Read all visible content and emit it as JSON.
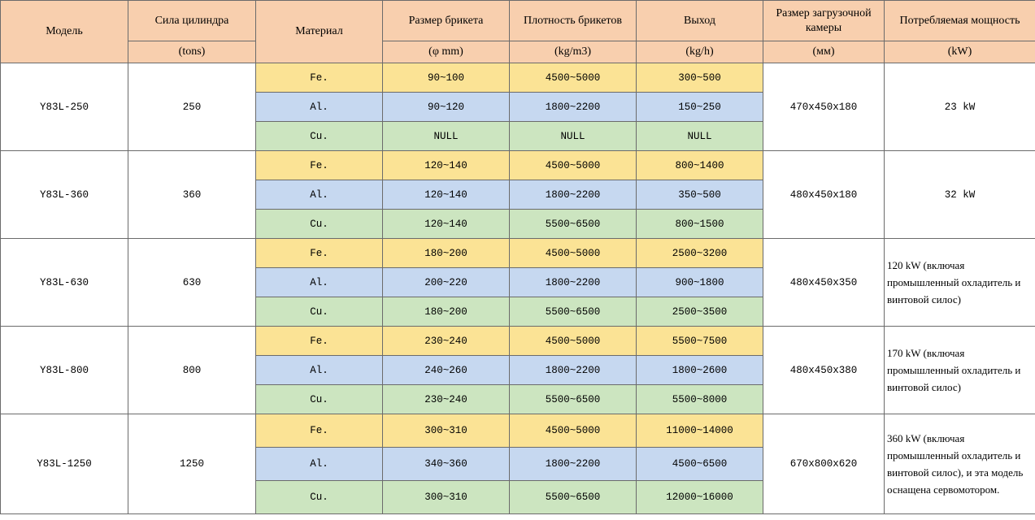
{
  "header": {
    "model": "Модель",
    "force": "Сила цилиндра",
    "force_unit": "(tons)",
    "material": "Материал",
    "size": "Размер брикета",
    "size_unit": "(φ mm)",
    "density": "Плотность брикетов",
    "density_unit": "(kg/m3)",
    "output": "Выход",
    "output_unit": "(kg/h)",
    "chamber": "Размер загрузочной камеры",
    "chamber_unit": "(мм)",
    "power": "Потребляемая мощность",
    "power_unit": "(kW)"
  },
  "rows": [
    {
      "model": "Y83L-250",
      "force": "250",
      "chamber": "470x450x180",
      "power": "23  kW",
      "materials": [
        {
          "material": "Fe.",
          "size": "90~100",
          "density": "4500~5000",
          "output": "300~500"
        },
        {
          "material": "Al.",
          "size": "90~120",
          "density": "1800~2200",
          "output": "150~250"
        },
        {
          "material": "Cu.",
          "size": "NULL",
          "density": "NULL",
          "output": "NULL"
        }
      ]
    },
    {
      "model": "Y83L-360",
      "force": "360",
      "chamber": "480x450x180",
      "power": "32  kW",
      "materials": [
        {
          "material": "Fe.",
          "size": "120~140",
          "density": "4500~5000",
          "output": "800~1400"
        },
        {
          "material": "Al.",
          "size": "120~140",
          "density": "1800~2200",
          "output": "350~500"
        },
        {
          "material": "Cu.",
          "size": "120~140",
          "density": "5500~6500",
          "output": "800~1500"
        }
      ]
    },
    {
      "model": "Y83L-630",
      "force": "630",
      "chamber": "480x450x350",
      "power": "120 kW (включая промышленный охладитель и винтовой силос)",
      "materials": [
        {
          "material": "Fe.",
          "size": "180~200",
          "density": "4500~5000",
          "output": "2500~3200"
        },
        {
          "material": "Al.",
          "size": "200~220",
          "density": "1800~2200",
          "output": "900~1800"
        },
        {
          "material": "Cu.",
          "size": "180~200",
          "density": "5500~6500",
          "output": "2500~3500"
        }
      ]
    },
    {
      "model": "Y83L-800",
      "force": "800",
      "chamber": "480x450x380",
      "power": "170 kW (включая промышленный охладитель и винтовой силос)",
      "materials": [
        {
          "material": "Fe.",
          "size": "230~240",
          "density": "4500~5000",
          "output": "5500~7500"
        },
        {
          "material": "Al.",
          "size": "240~260",
          "density": "1800~2200",
          "output": "1800~2600"
        },
        {
          "material": "Cu.",
          "size": "230~240",
          "density": "5500~6500",
          "output": "5500~8000"
        }
      ]
    },
    {
      "model": "Y83L-1250",
      "force": "1250",
      "chamber": "670x800x620",
      "power": "360 kW (включая промышленный охладитель и винтовой силос), и эта модель оснащена сервомотором.",
      "materials": [
        {
          "material": "Fe.",
          "size": "300~310",
          "density": "4500~5000",
          "output": "11000~14000"
        },
        {
          "material": "Al.",
          "size": "340~360",
          "density": "1800~2200",
          "output": "4500~6500"
        },
        {
          "material": "Cu.",
          "size": "300~310",
          "density": "5500~6500",
          "output": "12000~16000"
        }
      ]
    }
  ]
}
